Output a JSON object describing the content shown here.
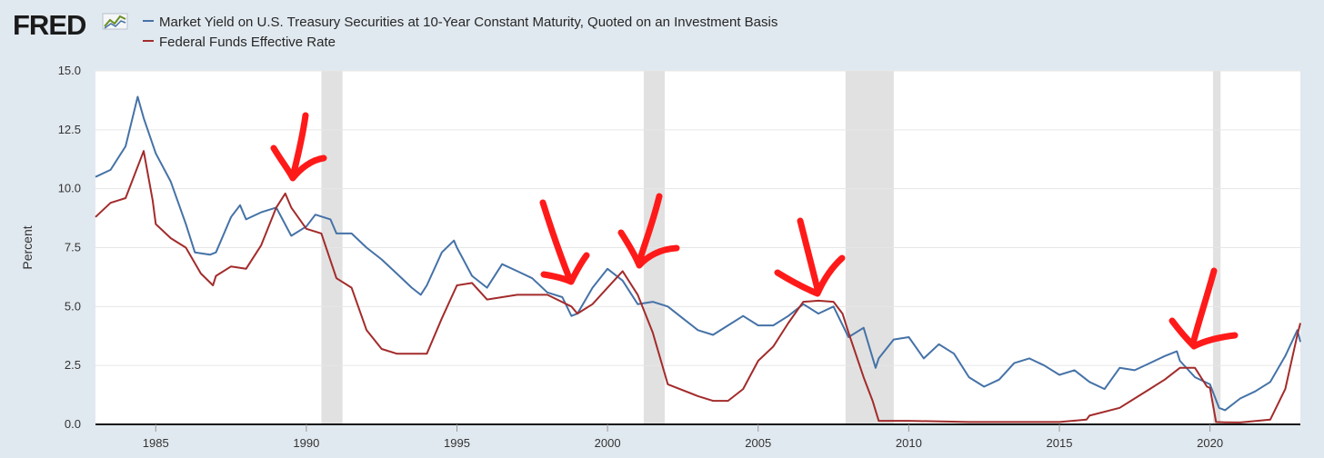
{
  "brand": {
    "name": "FRED"
  },
  "chart_data": {
    "type": "line",
    "title": "",
    "xlabel": "",
    "ylabel": "Percent",
    "xlim": [
      1983,
      2023
    ],
    "ylim": [
      0,
      15
    ],
    "xticks": [
      1985,
      1990,
      1995,
      2000,
      2005,
      2010,
      2015,
      2020
    ],
    "xtick_labels": [
      "1985",
      "1990",
      "1995",
      "2000",
      "2005",
      "2010",
      "2015",
      "2020"
    ],
    "yticks": [
      0,
      2.5,
      5,
      7.5,
      10,
      12.5,
      15
    ],
    "ytick_labels": [
      "0.0",
      "2.5",
      "5.0",
      "7.5",
      "10.0",
      "12.5",
      "15.0"
    ],
    "grid": true,
    "legend_position": "top-left",
    "recessions": [
      [
        1990.5,
        1991.2
      ],
      [
        2001.2,
        2001.9
      ],
      [
        2007.9,
        2009.5
      ],
      [
        2020.1,
        2020.35
      ]
    ],
    "series": [
      {
        "name": "Market Yield on U.S. Treasury Securities at 10-Year Constant Maturity, Quoted on an Investment Basis",
        "color": "#4572a7",
        "x": [
          1983.0,
          1983.5,
          1984.0,
          1984.4,
          1984.6,
          1985.0,
          1985.5,
          1986.0,
          1986.3,
          1986.8,
          1987.0,
          1987.5,
          1987.8,
          1988.0,
          1988.5,
          1989.0,
          1989.5,
          1990.0,
          1990.3,
          1990.8,
          1991.0,
          1991.5,
          1992.0,
          1992.5,
          1993.0,
          1993.5,
          1993.8,
          1994.0,
          1994.5,
          1994.9,
          1995.0,
          1995.5,
          1996.0,
          1996.5,
          1997.0,
          1997.5,
          1998.0,
          1998.5,
          1998.8,
          1999.0,
          1999.5,
          2000.0,
          2000.5,
          2001.0,
          2001.5,
          2002.0,
          2002.5,
          2003.0,
          2003.5,
          2004.0,
          2004.5,
          2005.0,
          2005.5,
          2006.0,
          2006.5,
          2007.0,
          2007.5,
          2008.0,
          2008.5,
          2008.9,
          2009.0,
          2009.5,
          2010.0,
          2010.5,
          2011.0,
          2011.5,
          2012.0,
          2012.5,
          2013.0,
          2013.5,
          2014.0,
          2014.5,
          2015.0,
          2015.5,
          2016.0,
          2016.5,
          2017.0,
          2017.5,
          2018.0,
          2018.5,
          2018.9,
          2019.0,
          2019.5,
          2020.0,
          2020.3,
          2020.5,
          2021.0,
          2021.5,
          2022.0,
          2022.5,
          2022.9,
          2023.0
        ],
        "values": [
          10.5,
          10.8,
          11.8,
          13.9,
          13.0,
          11.5,
          10.3,
          8.5,
          7.3,
          7.2,
          7.3,
          8.8,
          9.3,
          8.7,
          9.0,
          9.2,
          8.0,
          8.4,
          8.9,
          8.7,
          8.1,
          8.1,
          7.5,
          7.0,
          6.4,
          5.8,
          5.5,
          5.9,
          7.3,
          7.8,
          7.5,
          6.3,
          5.8,
          6.8,
          6.5,
          6.2,
          5.6,
          5.4,
          4.6,
          4.7,
          5.8,
          6.6,
          6.1,
          5.1,
          5.2,
          5.0,
          4.5,
          4.0,
          3.8,
          4.2,
          4.6,
          4.2,
          4.2,
          4.6,
          5.1,
          4.7,
          5.0,
          3.7,
          4.1,
          2.4,
          2.8,
          3.6,
          3.7,
          2.8,
          3.4,
          3.0,
          2.0,
          1.6,
          1.9,
          2.6,
          2.8,
          2.5,
          2.1,
          2.3,
          1.8,
          1.5,
          2.4,
          2.3,
          2.6,
          2.9,
          3.1,
          2.7,
          2.0,
          1.7,
          0.7,
          0.6,
          1.1,
          1.4,
          1.8,
          2.9,
          4.0,
          3.5
        ]
      },
      {
        "name": "Federal Funds Effective Rate",
        "color": "#a32b2b",
        "x": [
          1983.0,
          1983.5,
          1984.0,
          1984.6,
          1984.9,
          1985.0,
          1985.5,
          1986.0,
          1986.5,
          1986.9,
          1987.0,
          1987.5,
          1988.0,
          1988.5,
          1989.0,
          1989.3,
          1989.5,
          1990.0,
          1990.5,
          1991.0,
          1991.5,
          1992.0,
          1992.5,
          1993.0,
          1994.0,
          1994.5,
          1995.0,
          1995.5,
          1996.0,
          1997.0,
          1998.0,
          1998.8,
          1999.0,
          1999.5,
          2000.0,
          2000.5,
          2001.0,
          2001.5,
          2002.0,
          2003.0,
          2003.5,
          2004.0,
          2004.5,
          2005.0,
          2005.5,
          2006.0,
          2006.5,
          2007.0,
          2007.5,
          2007.8,
          2008.0,
          2008.5,
          2008.8,
          2009.0,
          2010.0,
          2012.0,
          2015.0,
          2015.9,
          2016.0,
          2017.0,
          2017.5,
          2018.0,
          2018.5,
          2019.0,
          2019.5,
          2019.9,
          2020.0,
          2020.2,
          2020.5,
          2021.0,
          2022.0,
          2022.5,
          2022.9,
          2023.0
        ],
        "values": [
          8.8,
          9.4,
          9.6,
          11.6,
          9.5,
          8.5,
          7.9,
          7.5,
          6.4,
          5.9,
          6.3,
          6.7,
          6.6,
          7.6,
          9.2,
          9.8,
          9.2,
          8.3,
          8.1,
          6.2,
          5.8,
          4.0,
          3.2,
          3.0,
          3.0,
          4.5,
          5.9,
          6.0,
          5.3,
          5.5,
          5.5,
          5.0,
          4.7,
          5.1,
          5.8,
          6.5,
          5.5,
          3.9,
          1.7,
          1.2,
          1.0,
          1.0,
          1.5,
          2.7,
          3.3,
          4.3,
          5.2,
          5.25,
          5.2,
          4.7,
          3.9,
          2.0,
          1.0,
          0.15,
          0.15,
          0.1,
          0.1,
          0.2,
          0.37,
          0.7,
          1.1,
          1.5,
          1.9,
          2.4,
          2.4,
          1.6,
          1.55,
          0.1,
          0.09,
          0.08,
          0.2,
          1.5,
          3.8,
          4.3
        ]
      }
    ],
    "annotations": [
      "red-arrow",
      "red-arrow",
      "red-arrow",
      "red-arrow",
      "red-arrow"
    ]
  }
}
